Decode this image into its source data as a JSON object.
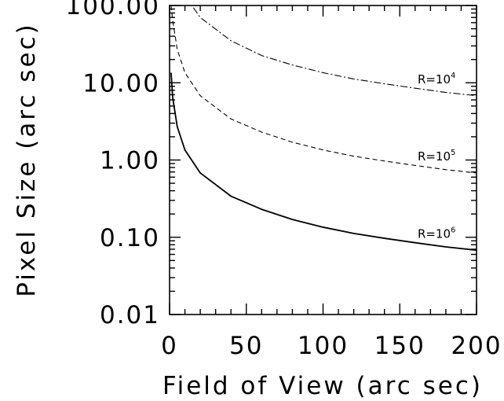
{
  "chart_data": {
    "type": "line",
    "title": "",
    "xlabel": "Field of View (arc sec)",
    "ylabel": "Pixel Size (arc sec)",
    "xlim": [
      0,
      200
    ],
    "ylim": [
      0.01,
      100
    ],
    "y_scale": "log",
    "grid": false,
    "x_ticks": [
      0,
      50,
      100,
      150,
      200
    ],
    "x_tick_labels": [
      "0",
      "50",
      "100",
      "150",
      "200"
    ],
    "y_ticks": [
      0.01,
      0.1,
      1,
      10,
      100
    ],
    "y_tick_labels": [
      "0.01",
      "0.10",
      "1.00",
      "10.00",
      "100.00"
    ],
    "series": [
      {
        "label_base": "R=10",
        "label_exponent": "4",
        "line_style": "dash-dot",
        "x": [
          10.5,
          20,
          40,
          60,
          80,
          100,
          120,
          140,
          160,
          180,
          200
        ],
        "y": [
          130,
          70,
          35,
          22.5,
          17,
          13.5,
          11.2,
          9.7,
          8.5,
          7.5,
          6.8
        ]
      },
      {
        "label_base": "R=10",
        "label_exponent": "5",
        "line_style": "dashed",
        "x": [
          1,
          2,
          5,
          10,
          20,
          40,
          60,
          80,
          100,
          120,
          140,
          160,
          180,
          200
        ],
        "y": [
          100,
          65,
          27,
          13.5,
          6.8,
          3.4,
          2.3,
          1.7,
          1.35,
          1.12,
          0.97,
          0.85,
          0.75,
          0.68
        ]
      },
      {
        "label_base": "R=10",
        "label_exponent": "6",
        "line_style": "solid",
        "x": [
          1,
          2,
          5,
          10,
          20,
          40,
          60,
          80,
          100,
          120,
          140,
          160,
          180,
          200
        ],
        "y": [
          13.5,
          6.5,
          2.7,
          1.35,
          0.68,
          0.34,
          0.23,
          0.17,
          0.135,
          0.112,
          0.097,
          0.085,
          0.075,
          0.068
        ]
      }
    ]
  }
}
